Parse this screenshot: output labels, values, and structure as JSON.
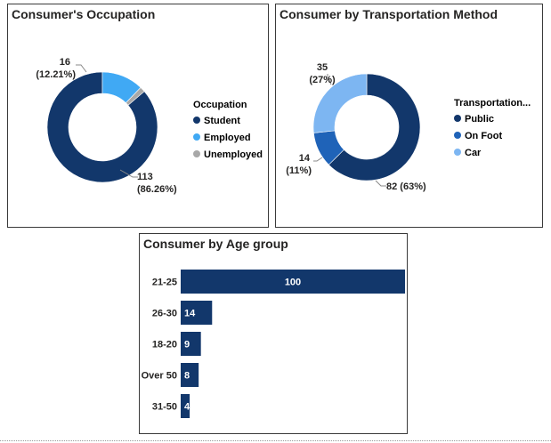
{
  "colors": {
    "dark_blue": "#12376B",
    "mid_blue": "#1F63B8",
    "light_blue": "#40A9F4",
    "lighter_blue": "#7DB6F2",
    "gray": "#A8A8A8"
  },
  "chart_data": [
    {
      "type": "pie",
      "donut": true,
      "title": "Consumer's Occupation",
      "legend_title": "Occupation",
      "legend_placement": "right",
      "categories": [
        "Student",
        "Employed",
        "Unemployed"
      ],
      "values": [
        113,
        16,
        2
      ],
      "colors": [
        "#12376B",
        "#40A9F4",
        "#A8A8A8"
      ],
      "data_labels": [
        {
          "value": "113",
          "percent": "(86.26%)"
        },
        {
          "value": "16",
          "percent": "(12.21%)"
        },
        null
      ]
    },
    {
      "type": "pie",
      "donut": true,
      "title": "Consumer by Transportation Method",
      "legend_title": "Transportation...",
      "legend_placement": "right",
      "categories": [
        "Public",
        "On Foot",
        "Car"
      ],
      "values": [
        82,
        14,
        35
      ],
      "colors": [
        "#12376B",
        "#1F63B8",
        "#7DB6F2"
      ],
      "data_labels": [
        {
          "value": "82",
          "percent": "(63%)"
        },
        {
          "value": "14",
          "percent": "(11%)"
        },
        {
          "value": "35",
          "percent": "(27%)"
        }
      ]
    },
    {
      "type": "bar",
      "orientation": "horizontal",
      "title": "Consumer by Age group",
      "categories": [
        "21-25",
        "26-30",
        "18-20",
        "Over 50",
        "31-50"
      ],
      "values": [
        100,
        14,
        9,
        8,
        4
      ],
      "xlim": [
        0,
        100
      ],
      "color": "#12376B",
      "grid": false
    }
  ]
}
